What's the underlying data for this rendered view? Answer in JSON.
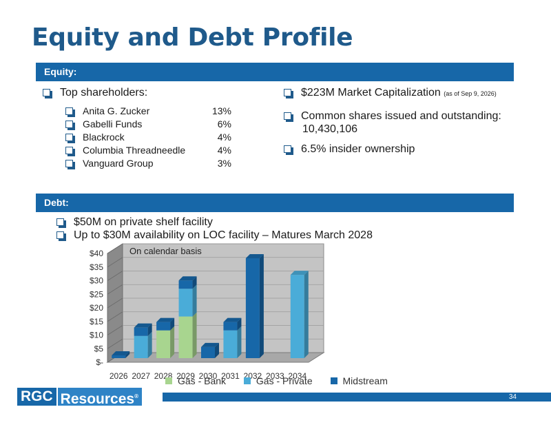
{
  "title": "Equity and Debt Profile",
  "equity": {
    "band": "Equity:",
    "top_shareholders_label": "Top shareholders:",
    "shareholders": [
      {
        "name": "Anita G. Zucker",
        "pct": "13%"
      },
      {
        "name": "Gabelli Funds",
        "pct": "6%"
      },
      {
        "name": "Blackrock",
        "pct": "4%"
      },
      {
        "name": "Columbia Threadneedle",
        "pct": "4%"
      },
      {
        "name": "Vanguard Group",
        "pct": "3%"
      }
    ],
    "market_cap": "$223M Market Capitalization",
    "market_cap_note": "(as of Sep 9, 2026)",
    "shares_label": "Common shares issued and outstanding:",
    "shares_value": "10,430,106",
    "insider": "6.5% insider ownership"
  },
  "debt": {
    "band": "Debt:",
    "items": [
      "$50M on private shelf facility",
      "Up to $30M availability on LOC facility – Matures March 2028"
    ]
  },
  "chart_data": {
    "type": "bar",
    "stacked": true,
    "annotation": "On calendar basis",
    "categories": [
      "2026",
      "2027",
      "2028",
      "2029",
      "2030",
      "2031",
      "2032",
      "2033",
      "2034"
    ],
    "series": [
      {
        "name": "Gas - Bank",
        "color": "#a8d58f",
        "values": [
          0,
          0,
          10,
          15,
          0,
          0,
          0,
          0,
          0
        ]
      },
      {
        "name": "Gas - Private",
        "color": "#4aacd8",
        "values": [
          0,
          8,
          0,
          10,
          0,
          10,
          0,
          0,
          30
        ]
      },
      {
        "name": "Midstream",
        "color": "#1767a8",
        "values": [
          1,
          3,
          3,
          3,
          4,
          3,
          36,
          0,
          0
        ]
      }
    ],
    "yticks": [
      "$-",
      "$5",
      "$10",
      "$15",
      "$20",
      "$25",
      "$30",
      "$35",
      "$40"
    ],
    "ylim": [
      0,
      40
    ]
  },
  "page_number": "34",
  "logo": {
    "part1": "RGC",
    "part2": "Resources",
    "mark": "®"
  }
}
